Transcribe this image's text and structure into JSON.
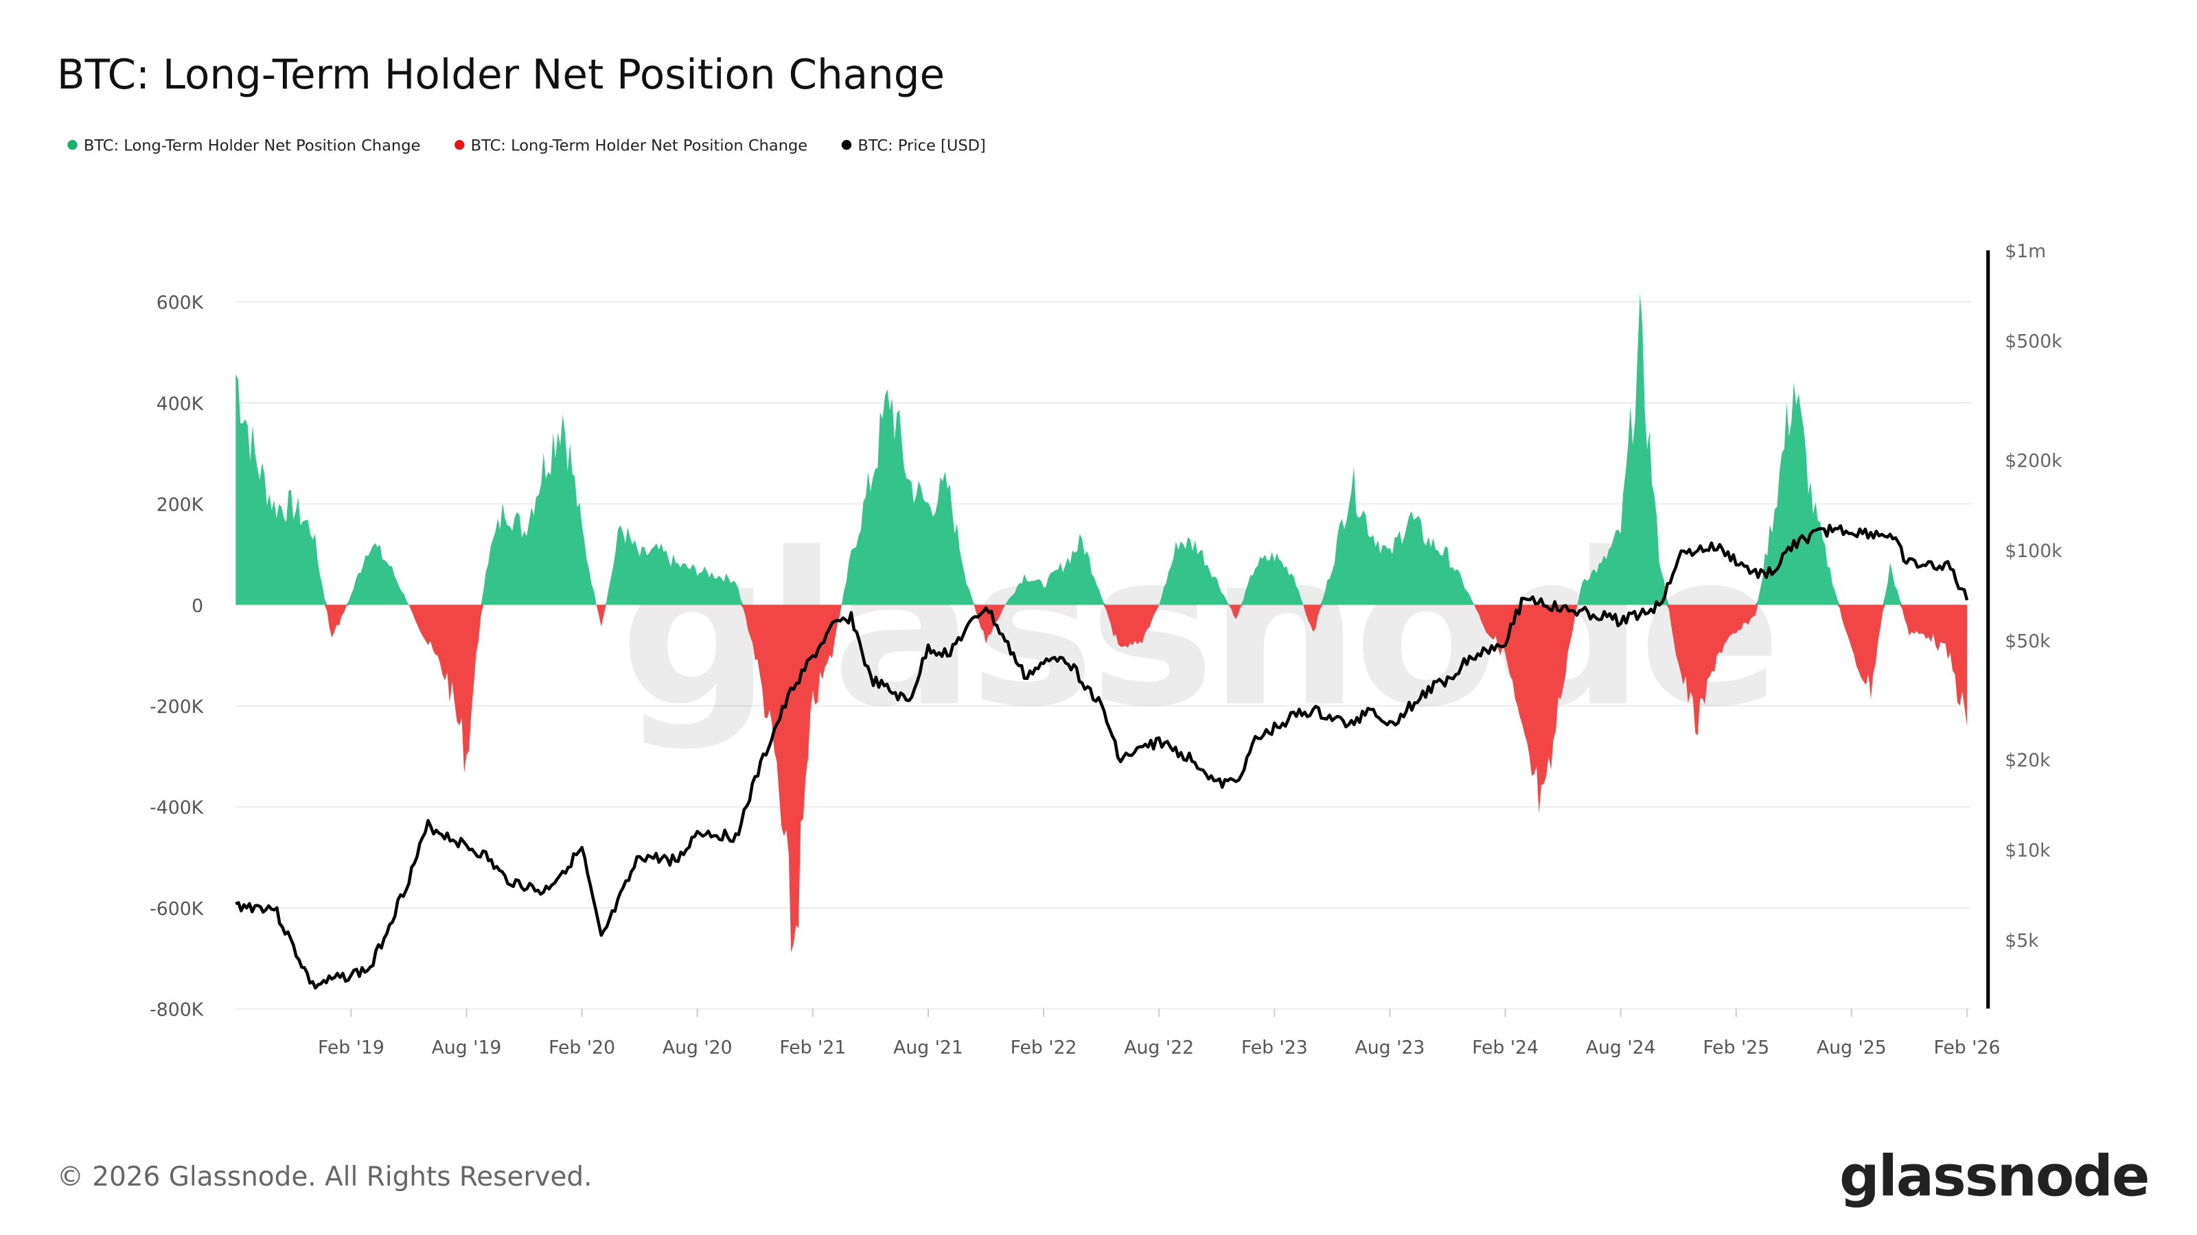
{
  "title": "BTC: Long-Term Holder Net Position Change",
  "legend": [
    {
      "label": "BTC: Long-Term Holder Net Position Change",
      "color": "#16b36e"
    },
    {
      "label": "BTC: Long-Term Holder Net Position Change",
      "color": "#e8161b"
    },
    {
      "label": "BTC: Price [USD]",
      "color": "#000000"
    }
  ],
  "watermark": "glassnode",
  "footer": {
    "copyright": "© 2026 Glassnode. All Rights Reserved.",
    "logo": "glassnode"
  },
  "chart_data": {
    "type": "area",
    "title": "BTC: Long-Term Holder Net Position Change",
    "grid": true,
    "legend_position": "top-left",
    "colors": {
      "positive": "#34c38a",
      "negative": "#f24646",
      "price": "#000000"
    },
    "x_ticks": [
      "Feb '19",
      "Aug '19",
      "Feb '20",
      "Aug '20",
      "Feb '21",
      "Aug '21",
      "Feb '22",
      "Aug '22",
      "Feb '23",
      "Aug '23",
      "Feb '24",
      "Aug '24",
      "Feb '25",
      "Aug '25",
      "Feb '26"
    ],
    "y_left": {
      "ticks": [
        "600K",
        "400K",
        "200K",
        "0",
        "-200K",
        "-400K",
        "-600K",
        "-800K"
      ],
      "values": [
        600000,
        400000,
        200000,
        0,
        -200000,
        -400000,
        -600000,
        -800000
      ],
      "range": [
        -800000,
        600000
      ]
    },
    "y_right": {
      "scale": "log",
      "ticks": [
        "$1m",
        "$500k",
        "$200k",
        "$100k",
        "$50k",
        "$20k",
        "$10k",
        "$5k"
      ],
      "values": [
        1000000,
        500000,
        200000,
        100000,
        50000,
        20000,
        10000,
        5000
      ]
    },
    "series": [
      {
        "name": "BTC: Long-Term Holder Net Position Change",
        "unit": "BTC",
        "points": [
          [
            "2018-08",
            470000
          ],
          [
            "2018-09",
            300000
          ],
          [
            "2018-10",
            200000
          ],
          [
            "2018-11",
            200000
          ],
          [
            "2018-12",
            150000
          ],
          [
            "2019-01",
            -70000
          ],
          [
            "2019-02",
            20000
          ],
          [
            "2019-03",
            130000
          ],
          [
            "2019-04",
            80000
          ],
          [
            "2019-05",
            0
          ],
          [
            "2019-06",
            -80000
          ],
          [
            "2019-07",
            -150000
          ],
          [
            "2019-08",
            -310000
          ],
          [
            "2019-09",
            80000
          ],
          [
            "2019-10",
            200000
          ],
          [
            "2019-11",
            150000
          ],
          [
            "2019-12",
            280000
          ],
          [
            "2020-01",
            390000
          ],
          [
            "2020-02",
            150000
          ],
          [
            "2020-03",
            -50000
          ],
          [
            "2020-04",
            160000
          ],
          [
            "2020-05",
            100000
          ],
          [
            "2020-06",
            110000
          ],
          [
            "2020-07",
            80000
          ],
          [
            "2020-08",
            70000
          ],
          [
            "2020-09",
            60000
          ],
          [
            "2020-10",
            50000
          ],
          [
            "2020-11",
            -100000
          ],
          [
            "2020-12",
            -300000
          ],
          [
            "2021-01",
            -700000
          ],
          [
            "2021-02",
            -200000
          ],
          [
            "2021-03",
            -100000
          ],
          [
            "2021-04",
            100000
          ],
          [
            "2021-05",
            250000
          ],
          [
            "2021-06",
            430000
          ],
          [
            "2021-07",
            250000
          ],
          [
            "2021-08",
            200000
          ],
          [
            "2021-09",
            240000
          ],
          [
            "2021-10",
            50000
          ],
          [
            "2021-11",
            -80000
          ],
          [
            "2021-12",
            0
          ],
          [
            "2022-01",
            60000
          ],
          [
            "2022-02",
            40000
          ],
          [
            "2022-03",
            80000
          ],
          [
            "2022-04",
            130000
          ],
          [
            "2022-05",
            20000
          ],
          [
            "2022-06",
            -100000
          ],
          [
            "2022-07",
            -80000
          ],
          [
            "2022-08",
            0
          ],
          [
            "2022-09",
            130000
          ],
          [
            "2022-10",
            120000
          ],
          [
            "2022-11",
            50000
          ],
          [
            "2022-12",
            -30000
          ],
          [
            "2023-01",
            80000
          ],
          [
            "2023-02",
            100000
          ],
          [
            "2023-03",
            60000
          ],
          [
            "2023-04",
            -60000
          ],
          [
            "2023-05",
            80000
          ],
          [
            "2023-06",
            250000
          ],
          [
            "2023-07",
            150000
          ],
          [
            "2023-08",
            100000
          ],
          [
            "2023-09",
            180000
          ],
          [
            "2023-10",
            130000
          ],
          [
            "2023-11",
            100000
          ],
          [
            "2023-12",
            30000
          ],
          [
            "2024-01",
            -50000
          ],
          [
            "2024-02",
            -100000
          ],
          [
            "2024-03",
            -300000
          ],
          [
            "2024-04",
            -430000
          ],
          [
            "2024-05",
            -150000
          ],
          [
            "2024-06",
            50000
          ],
          [
            "2024-07",
            80000
          ],
          [
            "2024-08",
            150000
          ],
          [
            "2024-09",
            540000
          ],
          [
            "2024-10",
            100000
          ],
          [
            "2024-11",
            -120000
          ],
          [
            "2024-12",
            -250000
          ],
          [
            "2025-01",
            -100000
          ],
          [
            "2025-02",
            -60000
          ],
          [
            "2025-03",
            -20000
          ],
          [
            "2025-04",
            200000
          ],
          [
            "2025-05",
            450000
          ],
          [
            "2025-06",
            200000
          ],
          [
            "2025-07",
            50000
          ],
          [
            "2025-08",
            -100000
          ],
          [
            "2025-09",
            -170000
          ],
          [
            "2025-10",
            80000
          ],
          [
            "2025-11",
            -60000
          ],
          [
            "2025-12",
            -60000
          ],
          [
            "2026-01",
            -100000
          ],
          [
            "2026-02",
            -240000
          ]
        ]
      },
      {
        "name": "BTC: Price [USD]",
        "unit": "USD",
        "axis": "right",
        "points": [
          [
            "2018-08",
            6500
          ],
          [
            "2018-10",
            6400
          ],
          [
            "2018-12",
            3500
          ],
          [
            "2019-03",
            4000
          ],
          [
            "2019-05",
            8000
          ],
          [
            "2019-06",
            12000
          ],
          [
            "2019-09",
            9500
          ],
          [
            "2019-10",
            8000
          ],
          [
            "2019-12",
            7200
          ],
          [
            "2020-02",
            10000
          ],
          [
            "2020-03",
            5000
          ],
          [
            "2020-05",
            9500
          ],
          [
            "2020-07",
            9200
          ],
          [
            "2020-08",
            11500
          ],
          [
            "2020-10",
            11000
          ],
          [
            "2020-11",
            17000
          ],
          [
            "2020-12",
            25000
          ],
          [
            "2021-01",
            35000
          ],
          [
            "2021-03",
            55000
          ],
          [
            "2021-04",
            60000
          ],
          [
            "2021-05",
            37000
          ],
          [
            "2021-07",
            31000
          ],
          [
            "2021-08",
            47000
          ],
          [
            "2021-09",
            45000
          ],
          [
            "2021-11",
            65000
          ],
          [
            "2022-01",
            38000
          ],
          [
            "2022-03",
            45000
          ],
          [
            "2022-05",
            30000
          ],
          [
            "2022-06",
            20000
          ],
          [
            "2022-08",
            23000
          ],
          [
            "2022-10",
            19500
          ],
          [
            "2022-11",
            16500
          ],
          [
            "2022-12",
            16800
          ],
          [
            "2023-01",
            23000
          ],
          [
            "2023-03",
            28000
          ],
          [
            "2023-04",
            29000
          ],
          [
            "2023-06",
            26000
          ],
          [
            "2023-07",
            30000
          ],
          [
            "2023-08",
            26000
          ],
          [
            "2023-10",
            34000
          ],
          [
            "2023-11",
            37000
          ],
          [
            "2023-12",
            43000
          ],
          [
            "2024-02",
            50000
          ],
          [
            "2024-03",
            70000
          ],
          [
            "2024-05",
            63000
          ],
          [
            "2024-06",
            62000
          ],
          [
            "2024-08",
            58000
          ],
          [
            "2024-10",
            65000
          ],
          [
            "2024-11",
            95000
          ],
          [
            "2024-12",
            100000
          ],
          [
            "2025-01",
            102000
          ],
          [
            "2025-03",
            83000
          ],
          [
            "2025-04",
            85000
          ],
          [
            "2025-05",
            105000
          ],
          [
            "2025-07",
            118000
          ],
          [
            "2025-08",
            115000
          ],
          [
            "2025-10",
            112000
          ],
          [
            "2025-11",
            90000
          ],
          [
            "2025-12",
            88000
          ],
          [
            "2026-01",
            90000
          ],
          [
            "2026-02",
            68000
          ]
        ]
      }
    ]
  }
}
